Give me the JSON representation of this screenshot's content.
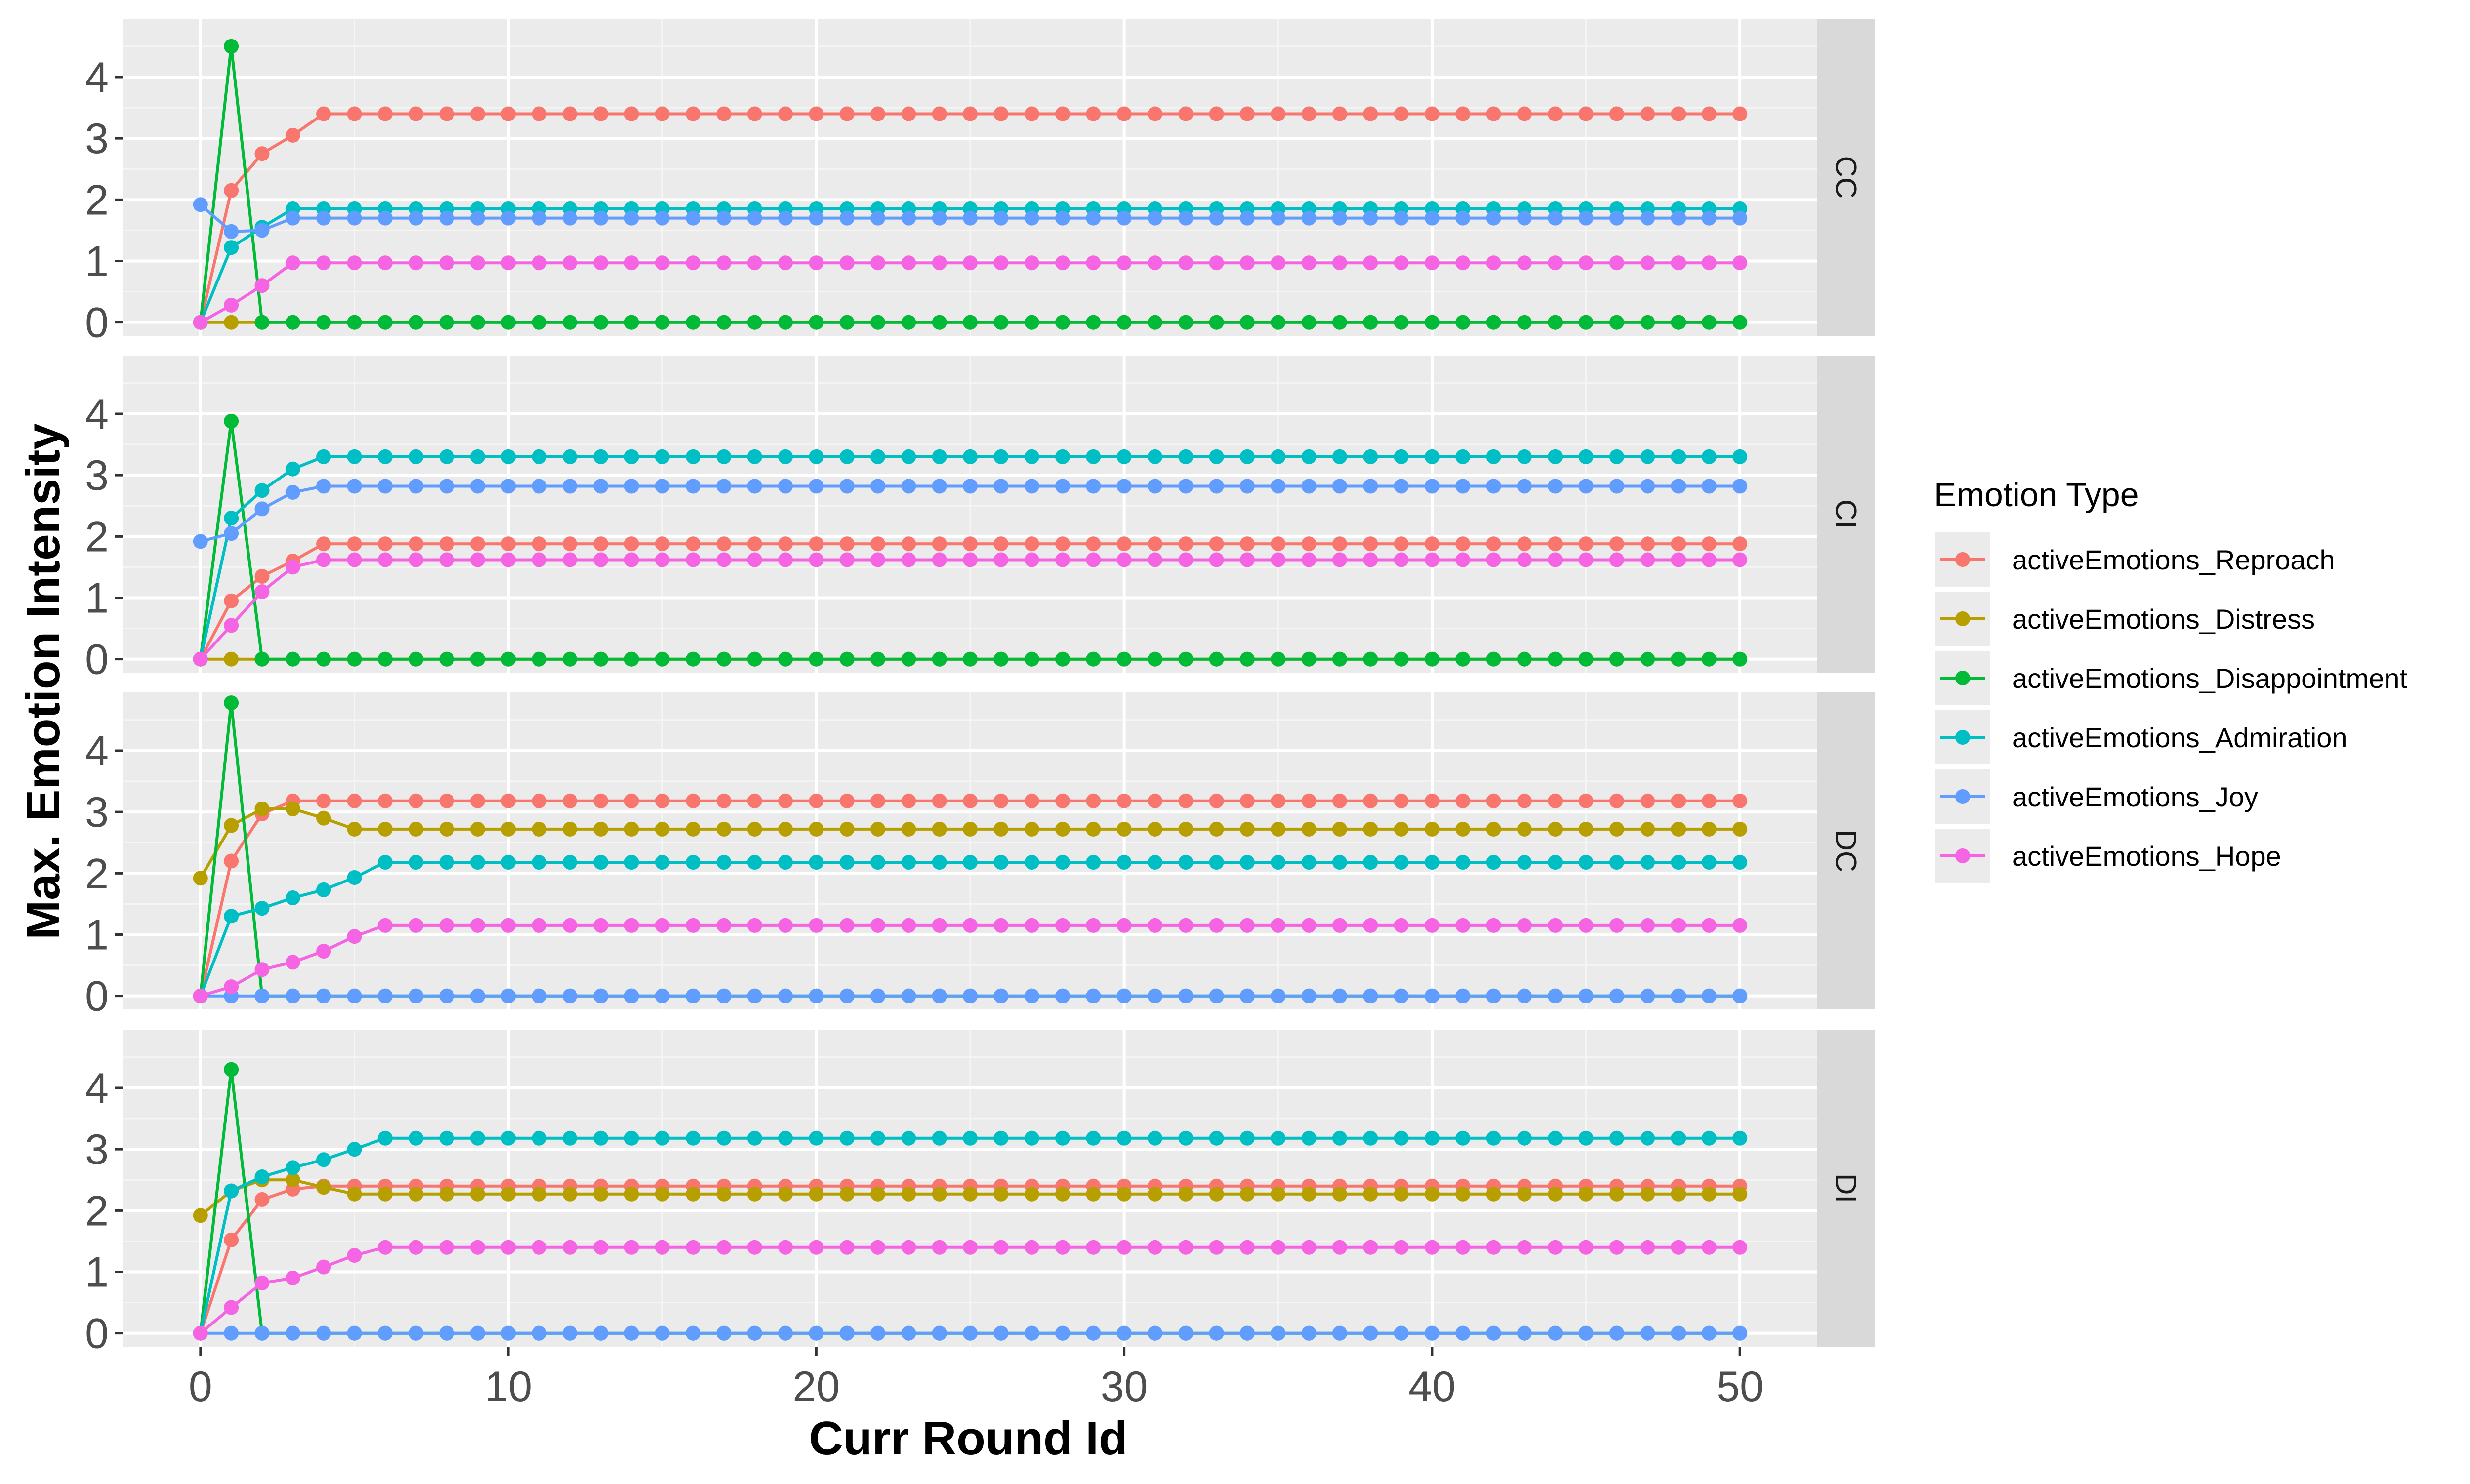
{
  "chart_data": {
    "type": "line",
    "xlabel": "Curr Round Id",
    "ylabel": "Max. Emotion Intensity",
    "xlim": [
      -2.5,
      52.5
    ],
    "ylim": [
      -0.22,
      4.95
    ],
    "x_ticks": [
      0,
      10,
      20,
      30,
      40,
      50
    ],
    "x_tick_labels": [
      "0",
      "10",
      "20",
      "30",
      "40",
      "50"
    ],
    "y_ticks": [
      0,
      1,
      2,
      3,
      4
    ],
    "y_tick_labels": [
      "0",
      "1",
      "2",
      "3",
      "4"
    ],
    "grid": true,
    "legend": {
      "title": "Emotion Type",
      "position": "right",
      "entries": [
        {
          "key": "reproach",
          "label": "activeEmotions_Reproach",
          "color": "#F8766D"
        },
        {
          "key": "distress",
          "label": "activeEmotions_Distress",
          "color": "#B79F00"
        },
        {
          "key": "disappointment",
          "label": "activeEmotions_Disappointment",
          "color": "#00BA38"
        },
        {
          "key": "admiration",
          "label": "activeEmotions_Admiration",
          "color": "#00BFC4"
        },
        {
          "key": "joy",
          "label": "activeEmotions_Joy",
          "color": "#619CFF"
        },
        {
          "key": "hope",
          "label": "activeEmotions_Hope",
          "color": "#F564E3"
        }
      ]
    },
    "x_range": [
      0,
      50
    ],
    "panels": [
      {
        "strip_label": "CC",
        "series": [
          {
            "key": "reproach",
            "head": [
              0,
              2.15,
              2.75,
              3.05
            ],
            "steady": 3.4
          },
          {
            "key": "distress",
            "head": [
              0
            ],
            "steady": 0
          },
          {
            "key": "disappointment",
            "head": [
              0,
              4.5
            ],
            "steady": 0
          },
          {
            "key": "admiration",
            "head": [
              0,
              1.22,
              1.55
            ],
            "steady": 1.85
          },
          {
            "key": "joy",
            "head": [
              1.92,
              1.48,
              1.5
            ],
            "steady": 1.7
          },
          {
            "key": "hope",
            "head": [
              0,
              0.28,
              0.6
            ],
            "steady": 0.97
          }
        ]
      },
      {
        "strip_label": "CI",
        "series": [
          {
            "key": "reproach",
            "head": [
              0,
              0.95,
              1.35,
              1.6
            ],
            "steady": 1.88
          },
          {
            "key": "distress",
            "head": [
              0
            ],
            "steady": 0
          },
          {
            "key": "disappointment",
            "head": [
              0,
              3.88
            ],
            "steady": 0
          },
          {
            "key": "admiration",
            "head": [
              0,
              2.3,
              2.75,
              3.1
            ],
            "steady": 3.3
          },
          {
            "key": "joy",
            "head": [
              1.92,
              2.05,
              2.45,
              2.72
            ],
            "steady": 2.82
          },
          {
            "key": "hope",
            "head": [
              0,
              0.55,
              1.1,
              1.5
            ],
            "steady": 1.62
          }
        ]
      },
      {
        "strip_label": "DC",
        "series": [
          {
            "key": "reproach",
            "head": [
              0,
              2.2,
              2.97
            ],
            "steady": 3.18
          },
          {
            "key": "distress",
            "head": [
              1.92,
              2.78,
              3.05,
              3.05,
              2.9
            ],
            "steady": 2.72
          },
          {
            "key": "disappointment",
            "head": [
              0,
              4.78
            ],
            "steady": 0
          },
          {
            "key": "admiration",
            "head": [
              0,
              1.3,
              1.43,
              1.6,
              1.73,
              1.93
            ],
            "steady": 2.18
          },
          {
            "key": "joy",
            "head": [
              0
            ],
            "steady": 0
          },
          {
            "key": "hope",
            "head": [
              0,
              0.15,
              0.43,
              0.55,
              0.73,
              0.97
            ],
            "steady": 1.15
          }
        ]
      },
      {
        "strip_label": "DI",
        "series": [
          {
            "key": "reproach",
            "head": [
              0,
              1.52,
              2.18,
              2.35
            ],
            "steady": 2.4
          },
          {
            "key": "distress",
            "head": [
              1.92,
              2.32,
              2.5,
              2.5,
              2.38
            ],
            "steady": 2.27
          },
          {
            "key": "disappointment",
            "head": [
              0,
              4.3
            ],
            "steady": 0
          },
          {
            "key": "admiration",
            "head": [
              0,
              2.32,
              2.55,
              2.7,
              2.83,
              3.0
            ],
            "steady": 3.18
          },
          {
            "key": "joy",
            "head": [
              0
            ],
            "steady": 0
          },
          {
            "key": "hope",
            "head": [
              0,
              0.42,
              0.82,
              0.9,
              1.08,
              1.27
            ],
            "steady": 1.4
          }
        ]
      }
    ]
  }
}
